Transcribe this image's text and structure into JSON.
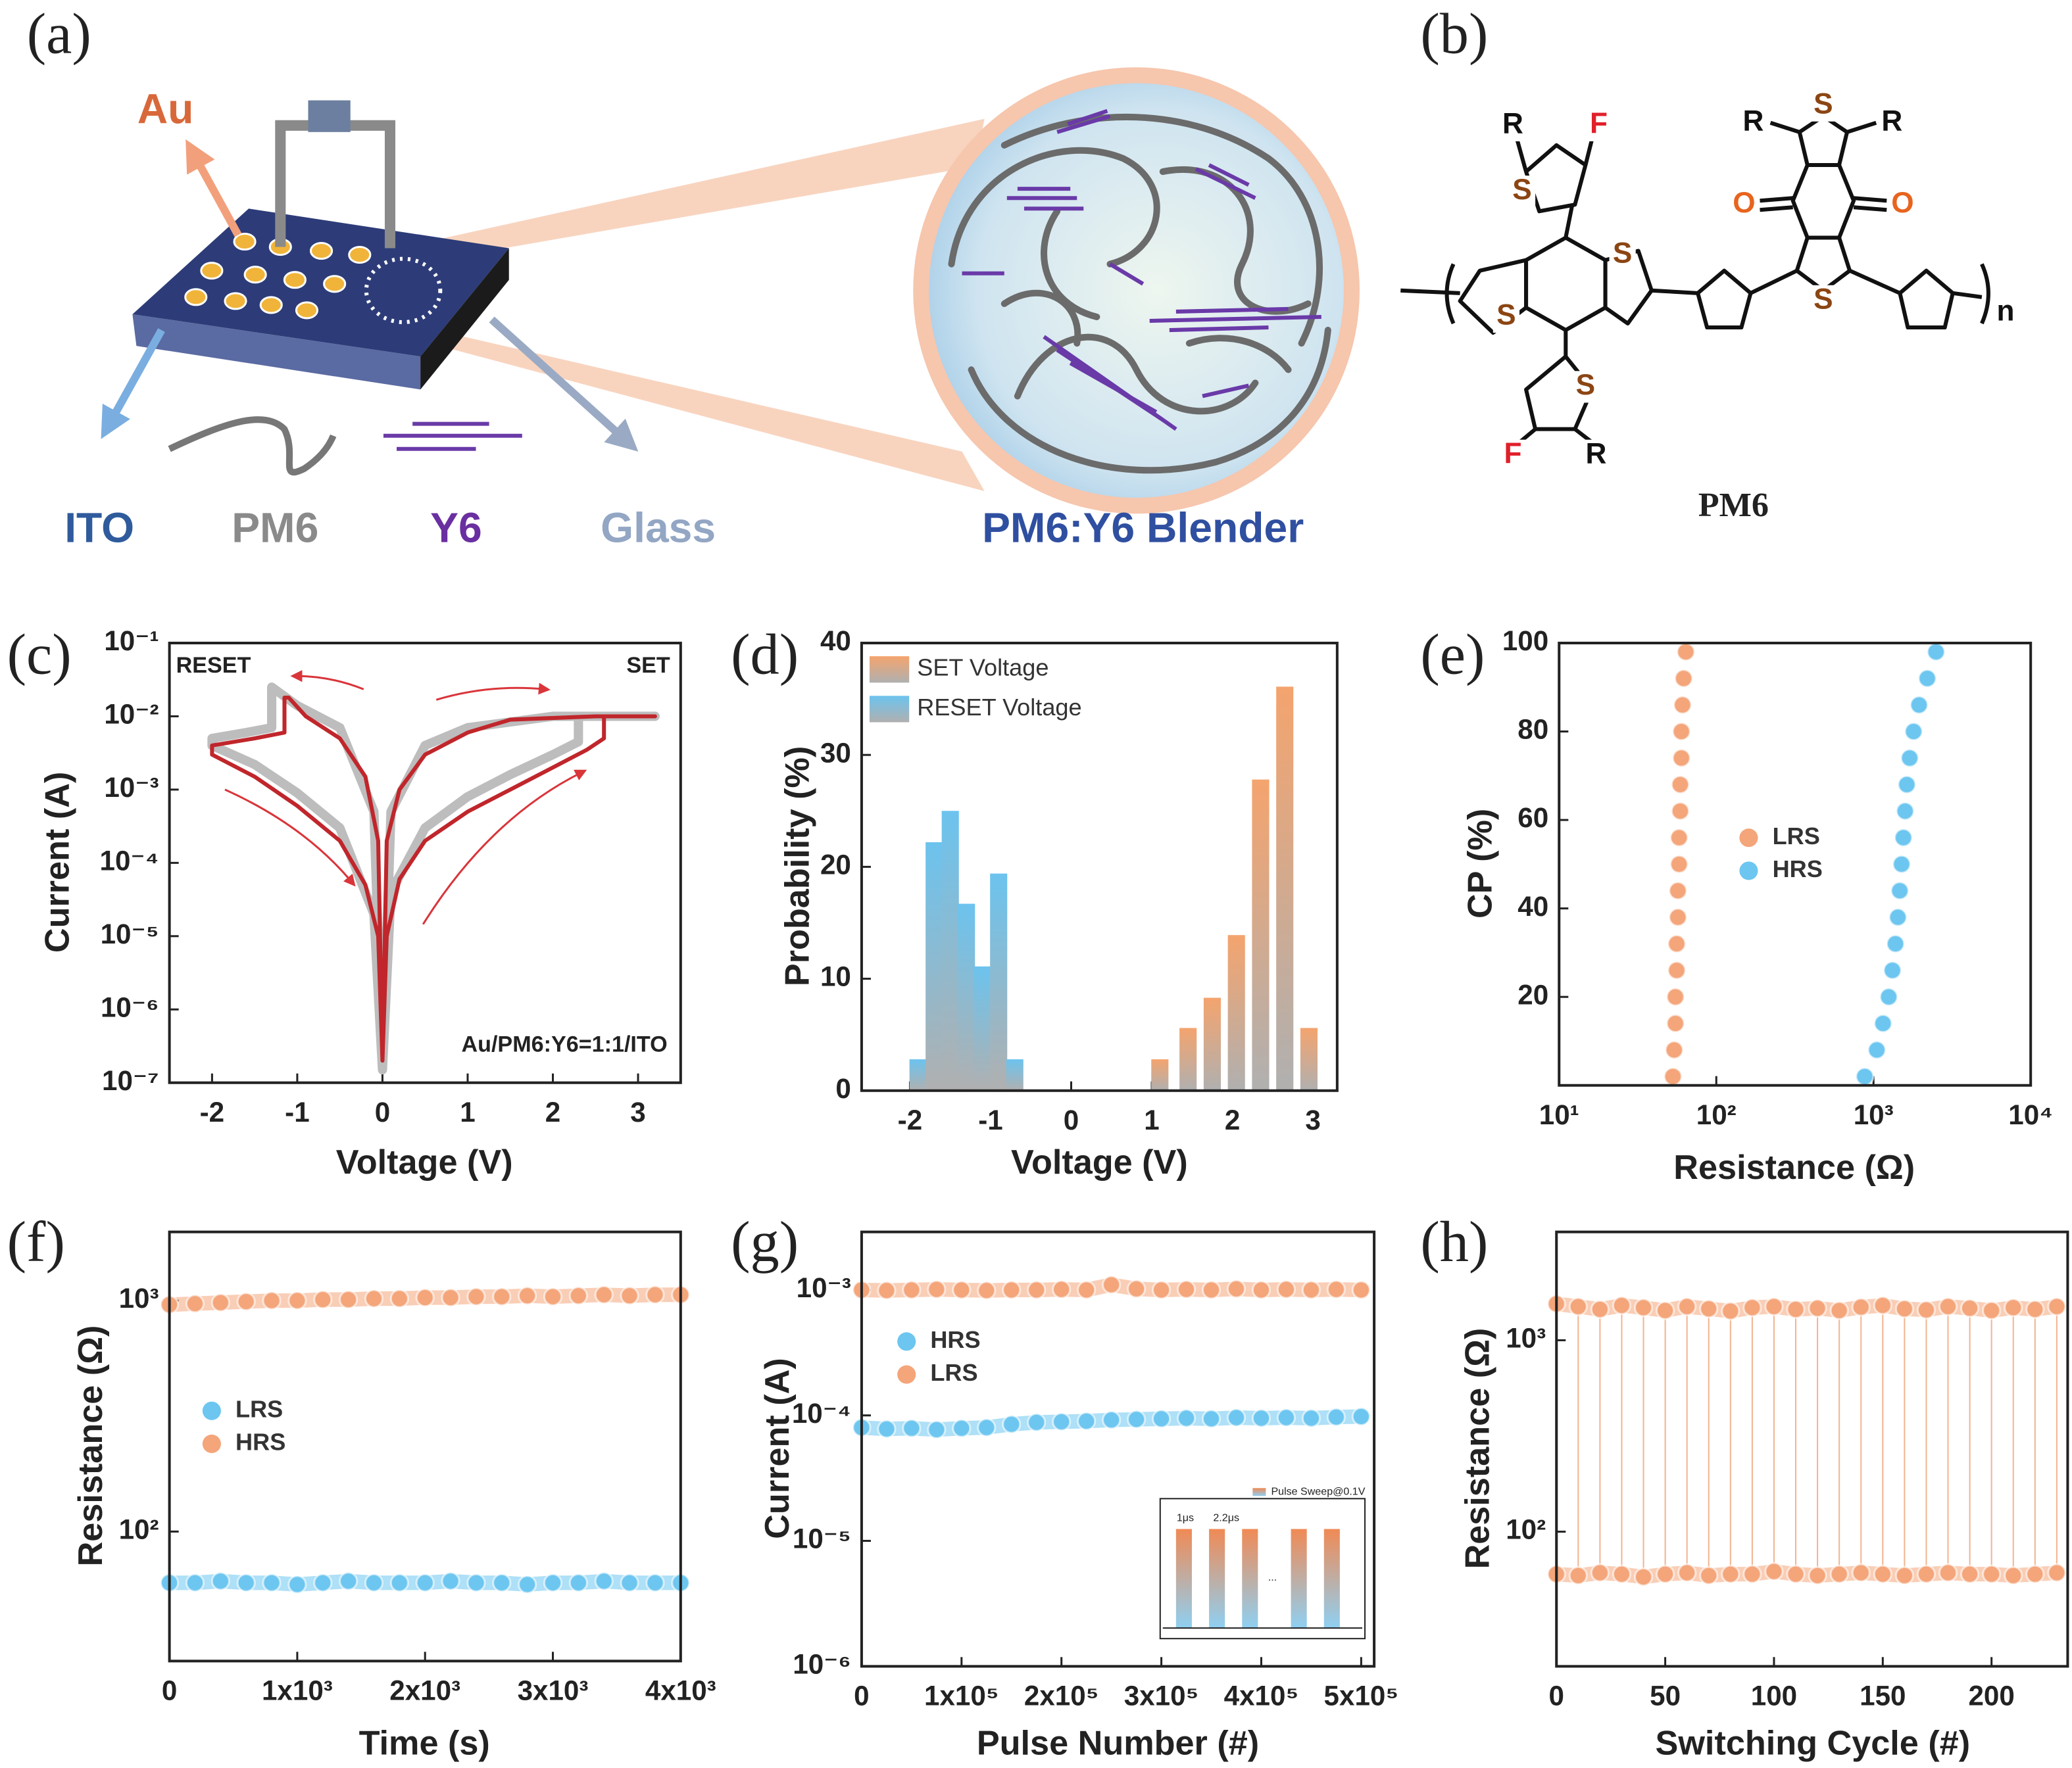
{
  "diagram": {
    "label": "(a)",
    "electrode": "Au",
    "legend": [
      "ITO",
      "PM6",
      "Y6",
      "Glass"
    ],
    "zoom_title": "PM6:Y6 Blender"
  },
  "structure": {
    "label": "(b)",
    "name": "PM6",
    "atoms": [
      "R",
      "F",
      "S",
      "S",
      "S",
      "S",
      "F",
      "R",
      "R",
      "S",
      "R",
      "O",
      "O",
      "S"
    ],
    "subscript": "n"
  },
  "chart_data": [
    {
      "type": "line",
      "label": "(c)",
      "xlabel": "Voltage (V)",
      "ylabel": "Current (A)",
      "annotations": [
        "RESET",
        "SET",
        "Au/PM6:Y6=1:1/ITO"
      ],
      "xlim": [
        -2.5,
        3.5
      ],
      "xticks": [
        -2,
        -1,
        0,
        1,
        2,
        3
      ],
      "ylog": true,
      "ylim": [
        1e-07,
        0.1
      ],
      "yticks": [
        {
          "value": 1e-07,
          "label": "10⁻⁷"
        },
        {
          "value": 1e-06,
          "label": "10⁻⁶"
        },
        {
          "value": 1e-05,
          "label": "10⁻⁵"
        },
        {
          "value": 0.0001,
          "label": "10⁻⁴"
        },
        {
          "value": 0.001,
          "label": "10⁻³"
        },
        {
          "value": 0.01,
          "label": "10⁻²"
        },
        {
          "value": 0.1,
          "label": "10⁻¹"
        }
      ],
      "series": [
        {
          "color": "#bdbdbd",
          "x": [
            0,
            0.1,
            0.5,
            1.0,
            1.5,
            2.0,
            2.3,
            2.3,
            3.2,
            2.0,
            1.0,
            0.5,
            0.1,
            0,
            -0.1,
            -0.5,
            -1.0,
            -1.3,
            -1.3,
            -1.6,
            -2.0,
            -2.0,
            -1.5,
            -1.0,
            -0.5,
            -0.1,
            0
          ],
          "values": [
            1.5e-07,
            4e-05,
            0.0003,
            0.0008,
            0.0016,
            0.003,
            0.0045,
            0.01,
            0.01,
            0.01,
            0.007,
            0.004,
            0.0005,
            1.5e-07,
            0.0005,
            0.007,
            0.014,
            0.025,
            0.007,
            0.006,
            0.005,
            0.004,
            0.0022,
            0.0009,
            0.0003,
            2e-05,
            1.5e-07
          ]
        },
        {
          "color": "#c0262b",
          "x": [
            0,
            0.05,
            0.2,
            0.5,
            1.0,
            1.5,
            2.0,
            2.4,
            2.6,
            2.6,
            3.2,
            2.5,
            1.5,
            1.0,
            0.5,
            0.2,
            0.05,
            0,
            -0.05,
            -0.2,
            -0.5,
            -0.9,
            -1.1,
            -1.15,
            -1.15,
            -1.5,
            -2.0,
            -2.0,
            -1.5,
            -1.0,
            -0.5,
            -0.2,
            -0.05,
            0
          ],
          "values": [
            2e-07,
            1e-05,
            6e-05,
            0.0002,
            0.0005,
            0.001,
            0.002,
            0.0035,
            0.005,
            0.01,
            0.01,
            0.01,
            0.009,
            0.006,
            0.003,
            0.001,
            0.0002,
            2e-07,
            0.0002,
            0.0015,
            0.005,
            0.01,
            0.018,
            0.018,
            0.006,
            0.005,
            0.004,
            0.003,
            0.0015,
            0.0006,
            0.0002,
            5e-05,
            1e-05,
            2e-07
          ]
        }
      ]
    },
    {
      "type": "bar",
      "label": "(d)",
      "xlabel": "Voltage (V)",
      "ylabel": "Probability (%)",
      "xlim": [
        -2.6,
        3.3
      ],
      "xticks": [
        -2,
        -1,
        0,
        1,
        2,
        3
      ],
      "ylim": [
        0,
        40
      ],
      "yticks": [
        0,
        10,
        20,
        30,
        40
      ],
      "legend": "upper left",
      "series": [
        {
          "name": "SET Voltage",
          "color": "#f4a46e",
          "x": [
            1.1,
            1.45,
            1.75,
            2.05,
            2.35,
            2.65,
            2.95
          ],
          "values": [
            2.8,
            5.6,
            8.3,
            13.9,
            27.8,
            36.1,
            5.6
          ]
        },
        {
          "name": "RESET Voltage",
          "color": "#6cc3ee",
          "x": [
            -1.9,
            -1.7,
            -1.5,
            -1.3,
            -1.1,
            -0.9,
            -0.7
          ],
          "values": [
            2.8,
            22.2,
            25.0,
            16.7,
            11.1,
            19.4,
            2.8
          ]
        }
      ]
    },
    {
      "type": "scatter",
      "label": "(e)",
      "xlabel": "Resistance (Ω)",
      "ylabel": "CP (%)",
      "xlog": true,
      "xlim": [
        10,
        10000
      ],
      "xticks": [
        {
          "value": 10,
          "label": "10¹"
        },
        {
          "value": 100,
          "label": "10²"
        },
        {
          "value": 1000,
          "label": "10³"
        },
        {
          "value": 10000,
          "label": "10⁴"
        }
      ],
      "ylim": [
        0,
        100
      ],
      "yticks": [
        20,
        40,
        60,
        80,
        100
      ],
      "legend": "center",
      "series": [
        {
          "name": "LRS",
          "color": "#f4a57a",
          "x": [
            53,
            54,
            55,
            55,
            56,
            56,
            57,
            57,
            58,
            58,
            59,
            59,
            60,
            60,
            61,
            62,
            64
          ],
          "values": [
            2,
            8,
            14,
            20,
            26,
            32,
            38,
            44,
            50,
            56,
            62,
            68,
            74,
            80,
            86,
            92,
            98
          ]
        },
        {
          "name": "HRS",
          "color": "#6cc6f0",
          "x": [
            880,
            1050,
            1150,
            1250,
            1320,
            1380,
            1430,
            1470,
            1510,
            1550,
            1590,
            1630,
            1700,
            1800,
            1950,
            2200,
            2500
          ],
          "values": [
            2,
            8,
            14,
            20,
            26,
            32,
            38,
            44,
            50,
            56,
            62,
            68,
            74,
            80,
            86,
            92,
            98
          ]
        }
      ]
    },
    {
      "type": "scatter",
      "label": "(f)",
      "xlabel": "Time (s)",
      "ylabel": "Resistance (Ω)",
      "xlim": [
        0,
        4000
      ],
      "xticks": [
        {
          "value": 0,
          "label": "0"
        },
        {
          "value": 1000,
          "label": "1x10³"
        },
        {
          "value": 2000,
          "label": "2x10³"
        },
        {
          "value": 3000,
          "label": "3x10³"
        },
        {
          "value": 4000,
          "label": "4x10³"
        }
      ],
      "ylog": true,
      "ylim": [
        27.5,
        1983
      ],
      "yticks": [
        {
          "value": 100,
          "label": "10²"
        },
        {
          "value": 1000,
          "label": "10³"
        }
      ],
      "legend": "center left",
      "connect": true,
      "x": [
        0,
        200,
        400,
        600,
        800,
        1000,
        1200,
        1400,
        1600,
        1800,
        2000,
        2200,
        2400,
        2600,
        2800,
        3000,
        3200,
        3400,
        3600,
        3800,
        4000
      ],
      "series": [
        {
          "name": "LRS",
          "color": "#6cc6f0",
          "values": [
            60,
            60,
            61,
            60,
            60,
            59,
            60,
            61,
            60,
            60,
            60,
            61,
            60,
            60,
            59,
            60,
            60,
            61,
            60,
            60,
            60
          ]
        },
        {
          "name": "HRS",
          "color": "#f4a57a",
          "values": [
            960,
            970,
            980,
            990,
            1000,
            1000,
            1010,
            1010,
            1020,
            1020,
            1030,
            1030,
            1040,
            1040,
            1050,
            1040,
            1050,
            1060,
            1050,
            1060,
            1060
          ]
        }
      ]
    },
    {
      "type": "scatter",
      "label": "(g)",
      "xlabel": "Pulse Number (#)",
      "ylabel": "Current (A)",
      "xlim": [
        0,
        513000
      ],
      "xticks": [
        {
          "value": 0,
          "label": "0"
        },
        {
          "value": 100000,
          "label": "1x10⁵"
        },
        {
          "value": 200000,
          "label": "2x10⁵"
        },
        {
          "value": 300000,
          "label": "3x10⁵"
        },
        {
          "value": 400000,
          "label": "4x10⁵"
        },
        {
          "value": 500000,
          "label": "5x10⁵"
        }
      ],
      "ylog": true,
      "ylim": [
        1e-06,
        0.0029
      ],
      "yticks": [
        {
          "value": 1e-06,
          "label": "10⁻⁶"
        },
        {
          "value": 1e-05,
          "label": "10⁻⁵"
        },
        {
          "value": 0.0001,
          "label": "10⁻⁴"
        },
        {
          "value": 0.001,
          "label": "10⁻³"
        }
      ],
      "legend": "upper left",
      "connect": true,
      "inset": {
        "legend": "Pulse Sweep@0.1V",
        "labels": [
          "1μs",
          "2.2μs",
          "..."
        ]
      },
      "x": [
        0,
        25000,
        50000,
        75000,
        100000,
        125000,
        150000,
        175000,
        200000,
        225000,
        250000,
        275000,
        300000,
        325000,
        350000,
        375000,
        400000,
        425000,
        450000,
        475000,
        500000
      ],
      "series": [
        {
          "name": "HRS",
          "color": "#6cc6f0",
          "values": [
            8e-05,
            7.8e-05,
            7.9e-05,
            7.7e-05,
            7.9e-05,
            8e-05,
            8.5e-05,
            8.8e-05,
            8.9e-05,
            9e-05,
            9.2e-05,
            9.3e-05,
            9.4e-05,
            9.5e-05,
            9.4e-05,
            9.6e-05,
            9.5e-05,
            9.6e-05,
            9.5e-05,
            9.7e-05,
            9.8e-05
          ]
        },
        {
          "name": "LRS",
          "color": "#f4a57a",
          "values": [
            0.001,
            0.00099,
            0.001,
            0.00101,
            0.001,
            0.00099,
            0.001,
            0.001,
            0.00101,
            0.001,
            0.0011,
            0.00102,
            0.001,
            0.00101,
            0.001,
            0.00102,
            0.001,
            0.00101,
            0.001,
            0.00101,
            0.001
          ]
        }
      ]
    },
    {
      "type": "scatter",
      "label": "(h)",
      "xlabel": "Switching Cycle (#)",
      "ylabel": "Resistance (Ω)",
      "xlim": [
        0,
        235
      ],
      "xticks": [
        0,
        50,
        100,
        150,
        200
      ],
      "ylog": true,
      "ylim": [
        19.8,
        3680
      ],
      "yticks": [
        {
          "value": 100,
          "label": "10²"
        },
        {
          "value": 1000,
          "label": "10³"
        }
      ],
      "connect": true,
      "drop_lines": true,
      "x": [
        0,
        10,
        20,
        30,
        40,
        50,
        60,
        70,
        80,
        90,
        100,
        110,
        120,
        130,
        140,
        150,
        160,
        170,
        180,
        190,
        200,
        210,
        220,
        230
      ],
      "series": [
        {
          "color": "#f4a57a",
          "values": [
            1550,
            1500,
            1450,
            1520,
            1480,
            1430,
            1500,
            1460,
            1420,
            1480,
            1500,
            1450,
            1470,
            1430,
            1490,
            1520,
            1460,
            1440,
            1500,
            1470,
            1430,
            1480,
            1450,
            1500
          ]
        },
        {
          "color": "#f4a57a",
          "values": [
            60,
            59,
            61,
            60,
            58,
            60,
            61,
            59,
            60,
            60,
            62,
            60,
            59,
            60,
            61,
            60,
            59,
            60,
            61,
            60,
            60,
            59,
            60,
            61
          ]
        }
      ]
    }
  ]
}
